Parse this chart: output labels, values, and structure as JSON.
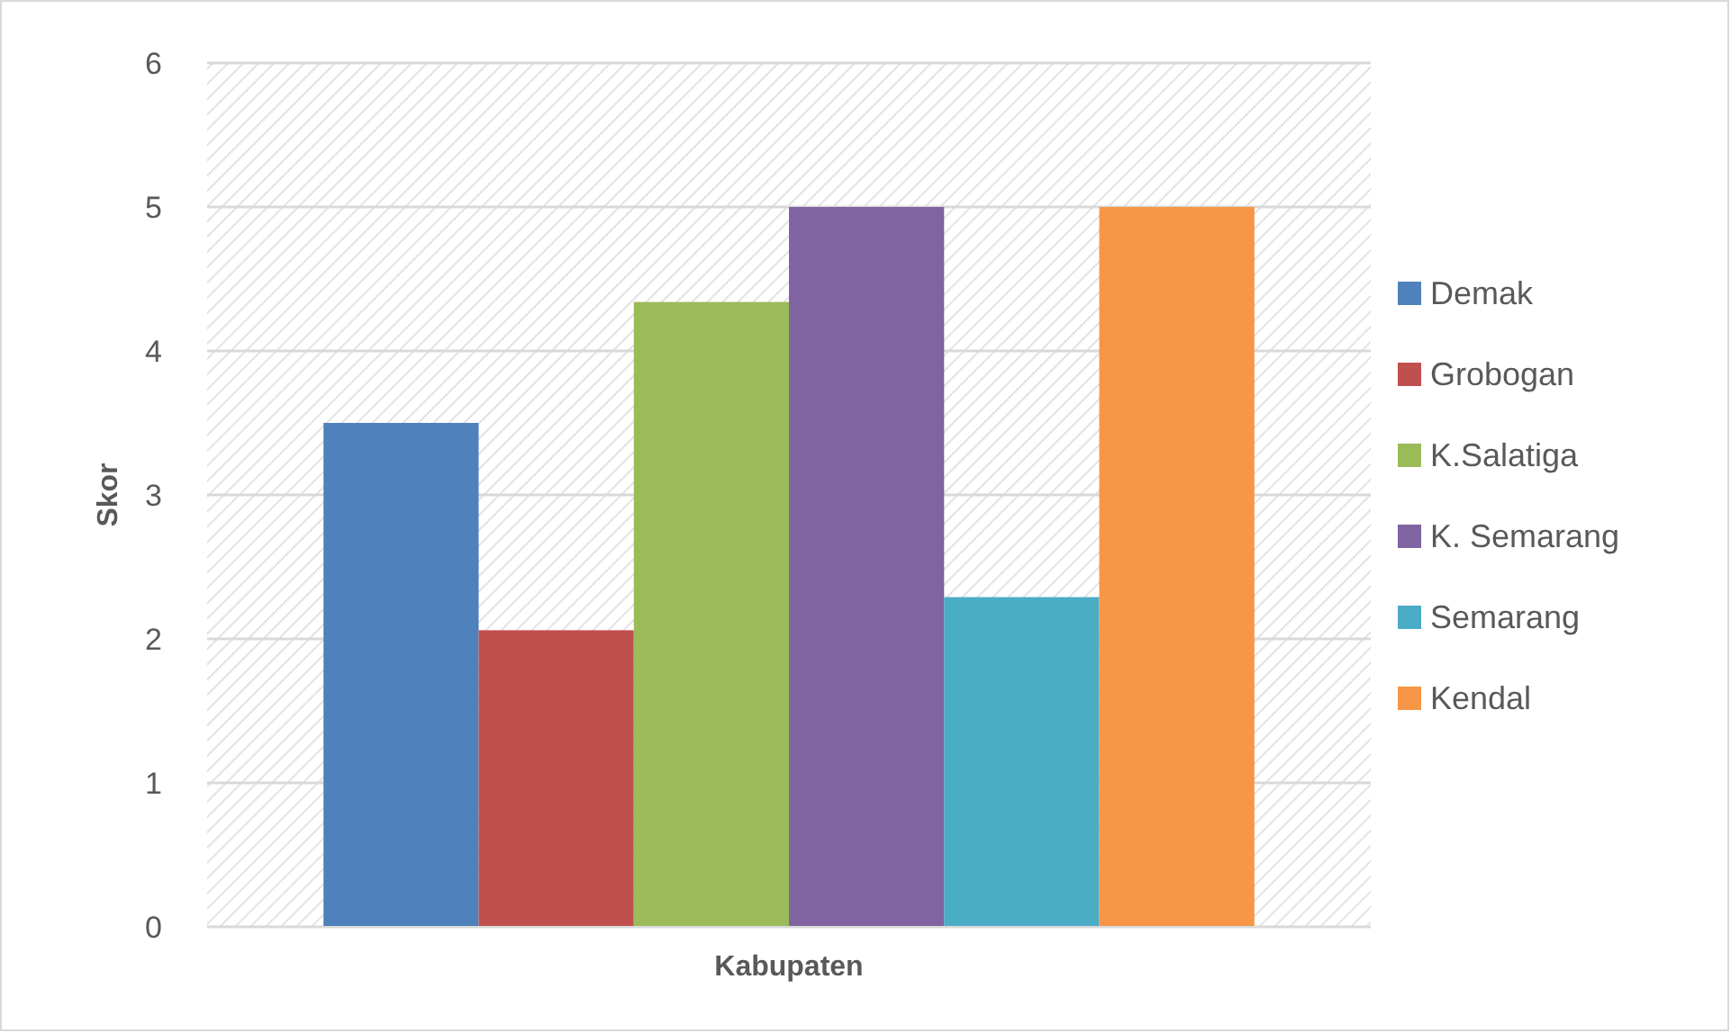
{
  "chart_data": {
    "type": "bar",
    "xlabel": "Kabupaten",
    "ylabel": "Skor",
    "categories": [
      null
    ],
    "series": [
      {
        "name": "Demak",
        "color": "#4f81bd",
        "values": [
          3.5
        ]
      },
      {
        "name": "Grobogan",
        "color": "#c0504d",
        "values": [
          2.06
        ]
      },
      {
        "name": "K.Salatiga",
        "color": "#9bbb59",
        "values": [
          4.34
        ]
      },
      {
        "name": "K. Semarang",
        "color": "#8064a2",
        "values": [
          5
        ]
      },
      {
        "name": "Semarang",
        "color": "#4bacc6",
        "values": [
          2.29
        ]
      },
      {
        "name": "Kendal",
        "color": "#f79646",
        "values": [
          5
        ]
      }
    ],
    "ylim": [
      0,
      6
    ],
    "yticks": [
      0,
      1,
      2,
      3,
      4,
      5,
      6
    ],
    "grid": "y",
    "legend": "right"
  }
}
